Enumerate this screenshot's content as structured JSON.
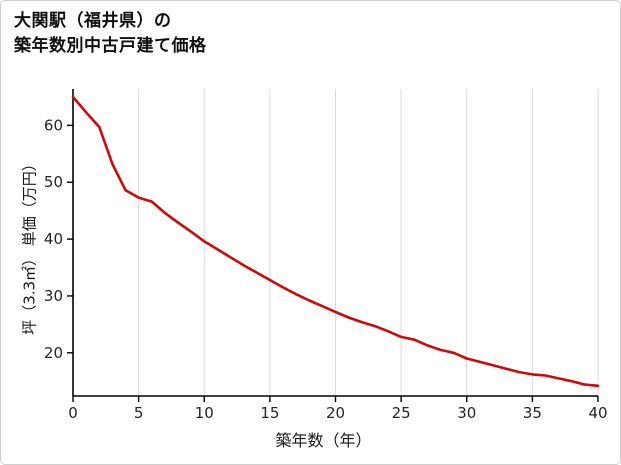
{
  "page": {
    "background": "#ffffff",
    "border_color": "#cfcfcf"
  },
  "chart_data": {
    "type": "line",
    "title_line1": "大関駅（福井県）の",
    "title_line2": "築年数別中古戸建て価格",
    "xlabel": "築年数（年）",
    "ylabel": "坪（3.3㎡） 単価（万円）",
    "x": [
      0,
      1,
      2,
      3,
      4,
      5,
      6,
      7,
      8,
      9,
      10,
      11,
      12,
      13,
      14,
      15,
      16,
      17,
      18,
      19,
      20,
      21,
      22,
      23,
      24,
      25,
      26,
      27,
      28,
      29,
      30,
      31,
      32,
      33,
      34,
      35,
      36,
      37,
      38,
      39,
      40
    ],
    "y": [
      65.0,
      62.3,
      59.7,
      53.2,
      48.6,
      47.3,
      46.6,
      44.6,
      42.9,
      41.3,
      39.6,
      38.2,
      36.8,
      35.4,
      34.1,
      32.8,
      31.5,
      30.3,
      29.2,
      28.2,
      27.2,
      26.2,
      25.4,
      24.7,
      23.8,
      22.8,
      22.3,
      21.3,
      20.5,
      20.0,
      19.0,
      18.4,
      17.8,
      17.2,
      16.6,
      16.2,
      16.0,
      15.5,
      15.0,
      14.4,
      14.2
    ],
    "xlim": [
      0,
      40
    ],
    "ylim": [
      12.4,
      66.4
    ],
    "x_ticks": [
      0,
      5,
      10,
      15,
      20,
      25,
      30,
      35,
      40
    ],
    "y_ticks": [
      20,
      30,
      40,
      50,
      60
    ],
    "line_color": "#cc0a0a",
    "line_width": 2.6,
    "grid": "vertical",
    "grid_color": "#d9d9d9",
    "axis_color": "#000000",
    "tick_label_color": "#262626",
    "legend": "none"
  }
}
